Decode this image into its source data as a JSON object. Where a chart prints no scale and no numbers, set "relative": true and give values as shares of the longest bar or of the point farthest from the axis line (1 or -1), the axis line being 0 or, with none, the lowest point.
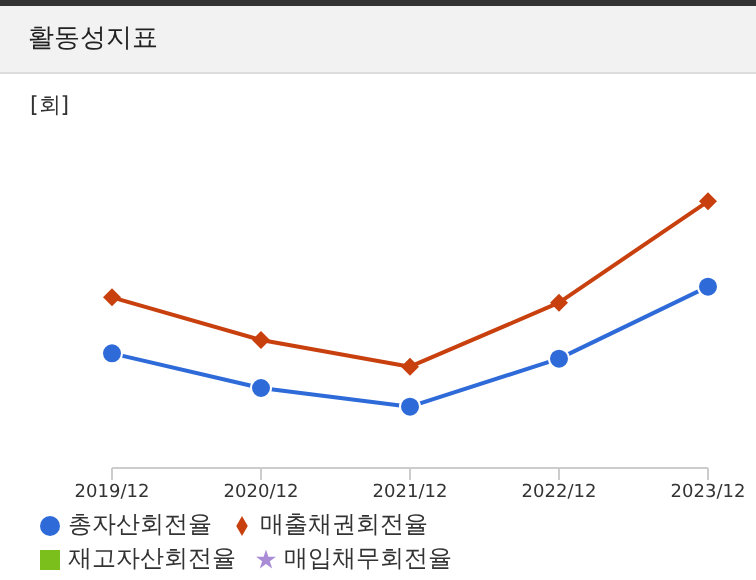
{
  "chart_data": {
    "type": "line",
    "title": "활동성지표",
    "ylabel": "[회]",
    "categories": [
      "2019/12",
      "2020/12",
      "2021/12",
      "2022/12",
      "2023/12"
    ],
    "relative": true,
    "series": [
      {
        "name": "총자산회전율",
        "color": "#2e6bd9",
        "marker": "circle",
        "values": [
          0.43,
          0.3,
          0.23,
          0.41,
          0.68
        ]
      },
      {
        "name": "매출채권회전율",
        "color": "#c9400f",
        "marker": "diamond",
        "values": [
          0.64,
          0.48,
          0.38,
          0.62,
          1
        ]
      },
      {
        "name": "재고자산회전율",
        "color": "#7bbf1c",
        "marker": "square",
        "values": [
          null,
          null,
          null,
          null,
          null
        ]
      },
      {
        "name": "매입채무회전율",
        "color": "#a98bd6",
        "marker": "star",
        "values": [
          null,
          null,
          null,
          null,
          null
        ]
      }
    ],
    "legend": "bottom"
  }
}
